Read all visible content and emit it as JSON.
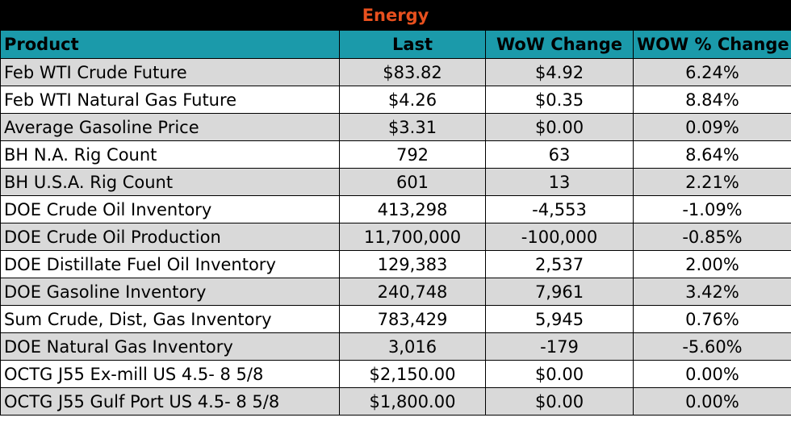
{
  "title": "Energy",
  "colors": {
    "title_bg": "#000000",
    "title_text": "#e8501e",
    "header_bg": "#1b9aaa",
    "row_alt": "#d9d9d9"
  },
  "headers": [
    "Product",
    "Last",
    "WoW Change",
    "WOW % Change"
  ],
  "rows": [
    [
      "Feb WTI Crude Future",
      "$83.82",
      "$4.92",
      "6.24%"
    ],
    [
      "Feb WTI Natural Gas Future",
      "$4.26",
      "$0.35",
      "8.84%"
    ],
    [
      "Average Gasoline Price",
      "$3.31",
      "$0.00",
      "0.09%"
    ],
    [
      "BH N.A. Rig Count",
      "792",
      "63",
      "8.64%"
    ],
    [
      "BH U.S.A. Rig Count",
      "601",
      "13",
      "2.21%"
    ],
    [
      "DOE Crude Oil Inventory",
      "413,298",
      "-4,553",
      "-1.09%"
    ],
    [
      "DOE Crude Oil Production",
      "11,700,000",
      "-100,000",
      "-0.85%"
    ],
    [
      "DOE Distillate Fuel Oil Inventory",
      "129,383",
      "2,537",
      "2.00%"
    ],
    [
      "DOE Gasoline Inventory",
      "240,748",
      "7,961",
      "3.42%"
    ],
    [
      "Sum Crude, Dist, Gas Inventory",
      "783,429",
      "5,945",
      "0.76%"
    ],
    [
      "DOE Natural Gas Inventory",
      "3,016",
      "-179",
      "-5.60%"
    ],
    [
      "OCTG J55 Ex-mill US 4.5- 8 5/8",
      "$2,150.00",
      "$0.00",
      "0.00%"
    ],
    [
      "OCTG J55 Gulf Port US 4.5- 8 5/8",
      "$1,800.00",
      "$0.00",
      "0.00%"
    ]
  ]
}
